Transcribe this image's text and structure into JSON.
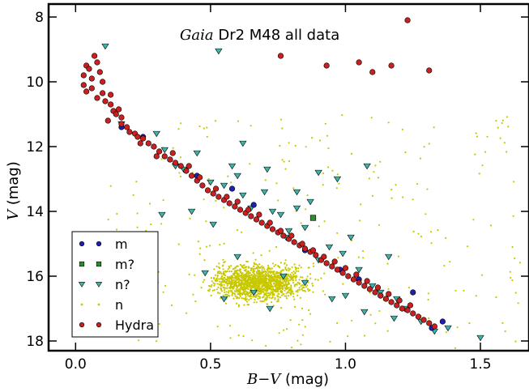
{
  "chart_data": {
    "type": "scatter",
    "title_italic": "Gaia",
    "title_rest": " Dr2 M48 all data",
    "xlabel_math": "B−V",
    "xlabel_unit": " (mag)",
    "ylabel_math": "V",
    "ylabel_unit": " (mag)",
    "xlim": [
      -0.1,
      1.68
    ],
    "ylim": [
      18.3,
      7.6
    ],
    "y_inverted": true,
    "xticks": [
      0.0,
      0.5,
      1.0,
      1.5
    ],
    "xtick_labels": [
      "0.0",
      "0.5",
      "1.0",
      "1.5"
    ],
    "yticks": [
      8,
      10,
      12,
      14,
      16,
      18
    ],
    "ytick_labels": [
      "8",
      "10",
      "12",
      "14",
      "16",
      "18"
    ],
    "grid": false,
    "legend_placement": "lower-left",
    "legend": [
      {
        "key": "m",
        "label": "m",
        "marker": "circle",
        "color": "#1f1fb0"
      },
      {
        "key": "m_q",
        "label": "m?",
        "marker": "square",
        "color": "#2e8b2e"
      },
      {
        "key": "n_q",
        "label": "n?",
        "marker": "triangle-down",
        "color": "#3cb5a8"
      },
      {
        "key": "n",
        "label": "n",
        "marker": "dot",
        "color": "#c8c800"
      },
      {
        "key": "hydra",
        "label": "Hydra",
        "marker": "circle",
        "color": "#cc2020"
      }
    ],
    "series": [
      {
        "name": "m",
        "points": [
          [
            0.17,
            11.4
          ],
          [
            0.25,
            11.7
          ],
          [
            0.35,
            12.4
          ],
          [
            0.45,
            12.9
          ],
          [
            0.58,
            13.3
          ],
          [
            0.66,
            13.8
          ],
          [
            0.85,
            15.2
          ],
          [
            0.98,
            15.8
          ],
          [
            1.05,
            16.1
          ],
          [
            1.13,
            16.6
          ],
          [
            1.25,
            16.5
          ],
          [
            1.32,
            17.6
          ],
          [
            1.36,
            17.4
          ]
        ]
      },
      {
        "name": "m?",
        "points": [
          [
            0.88,
            14.2
          ]
        ]
      },
      {
        "name": "n?",
        "points": [
          [
            0.11,
            8.9
          ],
          [
            0.53,
            9.05
          ],
          [
            0.17,
            11.3
          ],
          [
            0.3,
            11.6
          ],
          [
            0.33,
            12.1
          ],
          [
            0.37,
            12.6
          ],
          [
            0.4,
            12.7
          ],
          [
            0.45,
            12.2
          ],
          [
            0.5,
            13.1
          ],
          [
            0.55,
            13.2
          ],
          [
            0.58,
            12.6
          ],
          [
            0.6,
            12.9
          ],
          [
            0.62,
            13.5
          ],
          [
            0.65,
            13.9
          ],
          [
            0.7,
            13.4
          ],
          [
            0.73,
            14.0
          ],
          [
            0.76,
            14.1
          ],
          [
            0.79,
            14.6
          ],
          [
            0.82,
            13.9
          ],
          [
            0.85,
            14.5
          ],
          [
            0.9,
            12.8
          ],
          [
            0.94,
            15.1
          ],
          [
            0.97,
            13.0
          ],
          [
            0.99,
            15.3
          ],
          [
            1.02,
            14.8
          ],
          [
            1.05,
            15.8
          ],
          [
            1.08,
            12.6
          ],
          [
            1.1,
            16.3
          ],
          [
            1.13,
            16.5
          ],
          [
            1.16,
            15.4
          ],
          [
            1.19,
            16.7
          ],
          [
            1.22,
            17.0
          ],
          [
            1.28,
            17.4
          ],
          [
            1.33,
            17.7
          ],
          [
            1.38,
            17.6
          ],
          [
            1.5,
            17.9
          ],
          [
            0.32,
            14.1
          ],
          [
            0.48,
            15.9
          ],
          [
            0.55,
            16.7
          ],
          [
            0.6,
            15.4
          ],
          [
            0.66,
            16.5
          ],
          [
            0.72,
            17.0
          ],
          [
            0.78,
            14.8
          ],
          [
            0.85,
            16.2
          ],
          [
            0.9,
            15.5
          ],
          [
            0.95,
            16.7
          ],
          [
            1.0,
            16.6
          ],
          [
            0.62,
            11.9
          ],
          [
            0.71,
            12.7
          ],
          [
            0.82,
            13.4
          ],
          [
            0.87,
            13.7
          ],
          [
            0.43,
            14.0
          ],
          [
            1.07,
            17.1
          ],
          [
            1.18,
            17.3
          ],
          [
            0.51,
            14.4
          ],
          [
            0.77,
            16.0
          ]
        ]
      },
      {
        "name": "Hydra",
        "points": [
          [
            0.04,
            9.5
          ],
          [
            0.03,
            9.8
          ],
          [
            0.03,
            10.1
          ],
          [
            0.04,
            10.3
          ],
          [
            0.05,
            9.6
          ],
          [
            0.06,
            9.9
          ],
          [
            0.06,
            10.2
          ],
          [
            0.07,
            9.2
          ],
          [
            0.08,
            9.4
          ],
          [
            0.09,
            9.7
          ],
          [
            0.1,
            10.0
          ],
          [
            0.1,
            10.35
          ],
          [
            0.08,
            10.5
          ],
          [
            0.11,
            10.6
          ],
          [
            0.13,
            10.7
          ],
          [
            0.14,
            10.9
          ],
          [
            0.15,
            11.0
          ],
          [
            0.17,
            11.1
          ],
          [
            0.17,
            11.3
          ],
          [
            0.19,
            11.4
          ],
          [
            0.2,
            11.55
          ],
          [
            0.22,
            11.6
          ],
          [
            0.23,
            11.7
          ],
          [
            0.25,
            11.75
          ],
          [
            0.27,
            11.9
          ],
          [
            0.29,
            12.0
          ],
          [
            0.31,
            12.15
          ],
          [
            0.33,
            12.3
          ],
          [
            0.35,
            12.4
          ],
          [
            0.37,
            12.5
          ],
          [
            0.39,
            12.6
          ],
          [
            0.41,
            12.75
          ],
          [
            0.43,
            12.9
          ],
          [
            0.45,
            13.05
          ],
          [
            0.47,
            13.2
          ],
          [
            0.49,
            13.35
          ],
          [
            0.51,
            13.45
          ],
          [
            0.53,
            13.55
          ],
          [
            0.55,
            13.65
          ],
          [
            0.57,
            13.75
          ],
          [
            0.59,
            13.85
          ],
          [
            0.61,
            13.95
          ],
          [
            0.63,
            14.05
          ],
          [
            0.65,
            14.15
          ],
          [
            0.67,
            14.25
          ],
          [
            0.69,
            14.35
          ],
          [
            0.71,
            14.45
          ],
          [
            0.73,
            14.55
          ],
          [
            0.75,
            14.65
          ],
          [
            0.77,
            14.75
          ],
          [
            0.79,
            14.85
          ],
          [
            0.81,
            14.95
          ],
          [
            0.83,
            15.05
          ],
          [
            0.85,
            15.15
          ],
          [
            0.87,
            15.25
          ],
          [
            0.89,
            15.35
          ],
          [
            0.91,
            15.5
          ],
          [
            0.93,
            15.6
          ],
          [
            0.95,
            15.7
          ],
          [
            0.97,
            15.8
          ],
          [
            0.99,
            15.9
          ],
          [
            1.01,
            16.0
          ],
          [
            1.03,
            16.1
          ],
          [
            1.05,
            16.2
          ],
          [
            1.07,
            16.3
          ],
          [
            1.09,
            16.4
          ],
          [
            1.11,
            16.5
          ],
          [
            1.13,
            16.6
          ],
          [
            1.15,
            16.7
          ],
          [
            1.17,
            16.8
          ],
          [
            1.19,
            16.9
          ],
          [
            1.21,
            17.0
          ],
          [
            1.23,
            17.05
          ],
          [
            1.25,
            17.15
          ],
          [
            1.27,
            17.25
          ],
          [
            1.29,
            17.35
          ],
          [
            1.31,
            17.45
          ],
          [
            1.33,
            17.55
          ],
          [
            0.36,
            12.2
          ],
          [
            0.42,
            12.6
          ],
          [
            0.52,
            13.3
          ],
          [
            0.6,
            13.7
          ],
          [
            0.68,
            14.1
          ],
          [
            0.76,
            14.6
          ],
          [
            0.84,
            15.0
          ],
          [
            0.92,
            15.4
          ],
          [
            1.0,
            15.75
          ],
          [
            1.08,
            16.15
          ],
          [
            1.16,
            16.55
          ],
          [
            1.24,
            16.9
          ],
          [
            0.24,
            11.9
          ],
          [
            0.3,
            12.3
          ],
          [
            0.46,
            12.95
          ],
          [
            0.56,
            13.55
          ],
          [
            0.64,
            13.95
          ],
          [
            0.72,
            14.35
          ],
          [
            0.8,
            14.75
          ],
          [
            0.88,
            15.2
          ],
          [
            0.96,
            15.55
          ],
          [
            1.04,
            15.95
          ],
          [
            1.12,
            16.35
          ],
          [
            1.2,
            16.75
          ],
          [
            0.13,
            10.4
          ],
          [
            0.16,
            10.85
          ],
          [
            0.12,
            11.2
          ],
          [
            0.76,
            9.2
          ],
          [
            0.93,
            9.5
          ],
          [
            1.05,
            9.4
          ],
          [
            1.1,
            9.7
          ],
          [
            1.17,
            9.5
          ],
          [
            1.23,
            8.1
          ],
          [
            1.31,
            9.65
          ]
        ]
      }
    ],
    "n_cloud": {
      "description_free": true,
      "point_count": 1800,
      "x_range": [
        0.4,
        1.35
      ],
      "y_range": [
        14.5,
        17.4
      ],
      "scatter_x_range": [
        0.05,
        1.65
      ],
      "scatter_y_range": [
        9.5,
        18.3
      ]
    },
    "title": "Gaia Dr2 M48 all data",
    "xlabel": "B−V (mag)",
    "ylabel": "V (mag)"
  }
}
